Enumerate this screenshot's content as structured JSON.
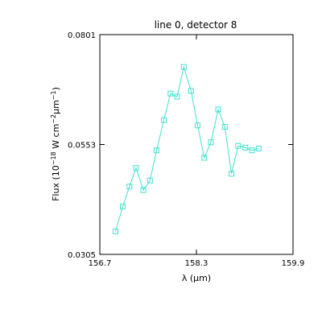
{
  "chart_data": {
    "type": "line",
    "title": "line 0, detector 8",
    "xlabel": "λ (μm)",
    "ylabel": "Flux (10",
    "ylabel_exp1": "−18",
    "ylabel_mid": " W cm",
    "ylabel_exp2": "−2",
    "ylabel_mid2": "μm",
    "ylabel_exp3": "−1",
    "ylabel_end": ")",
    "xlim": [
      156.7,
      159.9
    ],
    "ylim": [
      0.0305,
      0.0801
    ],
    "xticks": [
      156.7,
      158.3,
      159.9
    ],
    "xtick_labels": [
      "156.7",
      "158.3",
      "159.9"
    ],
    "yticks": [
      0.0305,
      0.0553,
      0.0801
    ],
    "ytick_labels": [
      "0.0305",
      "0.0553",
      "0.0801"
    ],
    "series_color": "#40e0d0",
    "marker": "open-square",
    "x": [
      156.96,
      157.08,
      157.19,
      157.3,
      157.42,
      157.53,
      157.64,
      157.76,
      157.87,
      157.98,
      158.09,
      158.21,
      158.32,
      158.43,
      158.54,
      158.66,
      158.77,
      158.88,
      158.99,
      159.11,
      159.22,
      159.33
    ],
    "y": [
      0.0357,
      0.0413,
      0.0458,
      0.05,
      0.045,
      0.0472,
      0.054,
      0.0608,
      0.0668,
      0.0661,
      0.0728,
      0.0674,
      0.0596,
      0.0523,
      0.0558,
      0.0632,
      0.0593,
      0.0487,
      0.055,
      0.0546,
      0.054,
      0.0544
    ]
  }
}
